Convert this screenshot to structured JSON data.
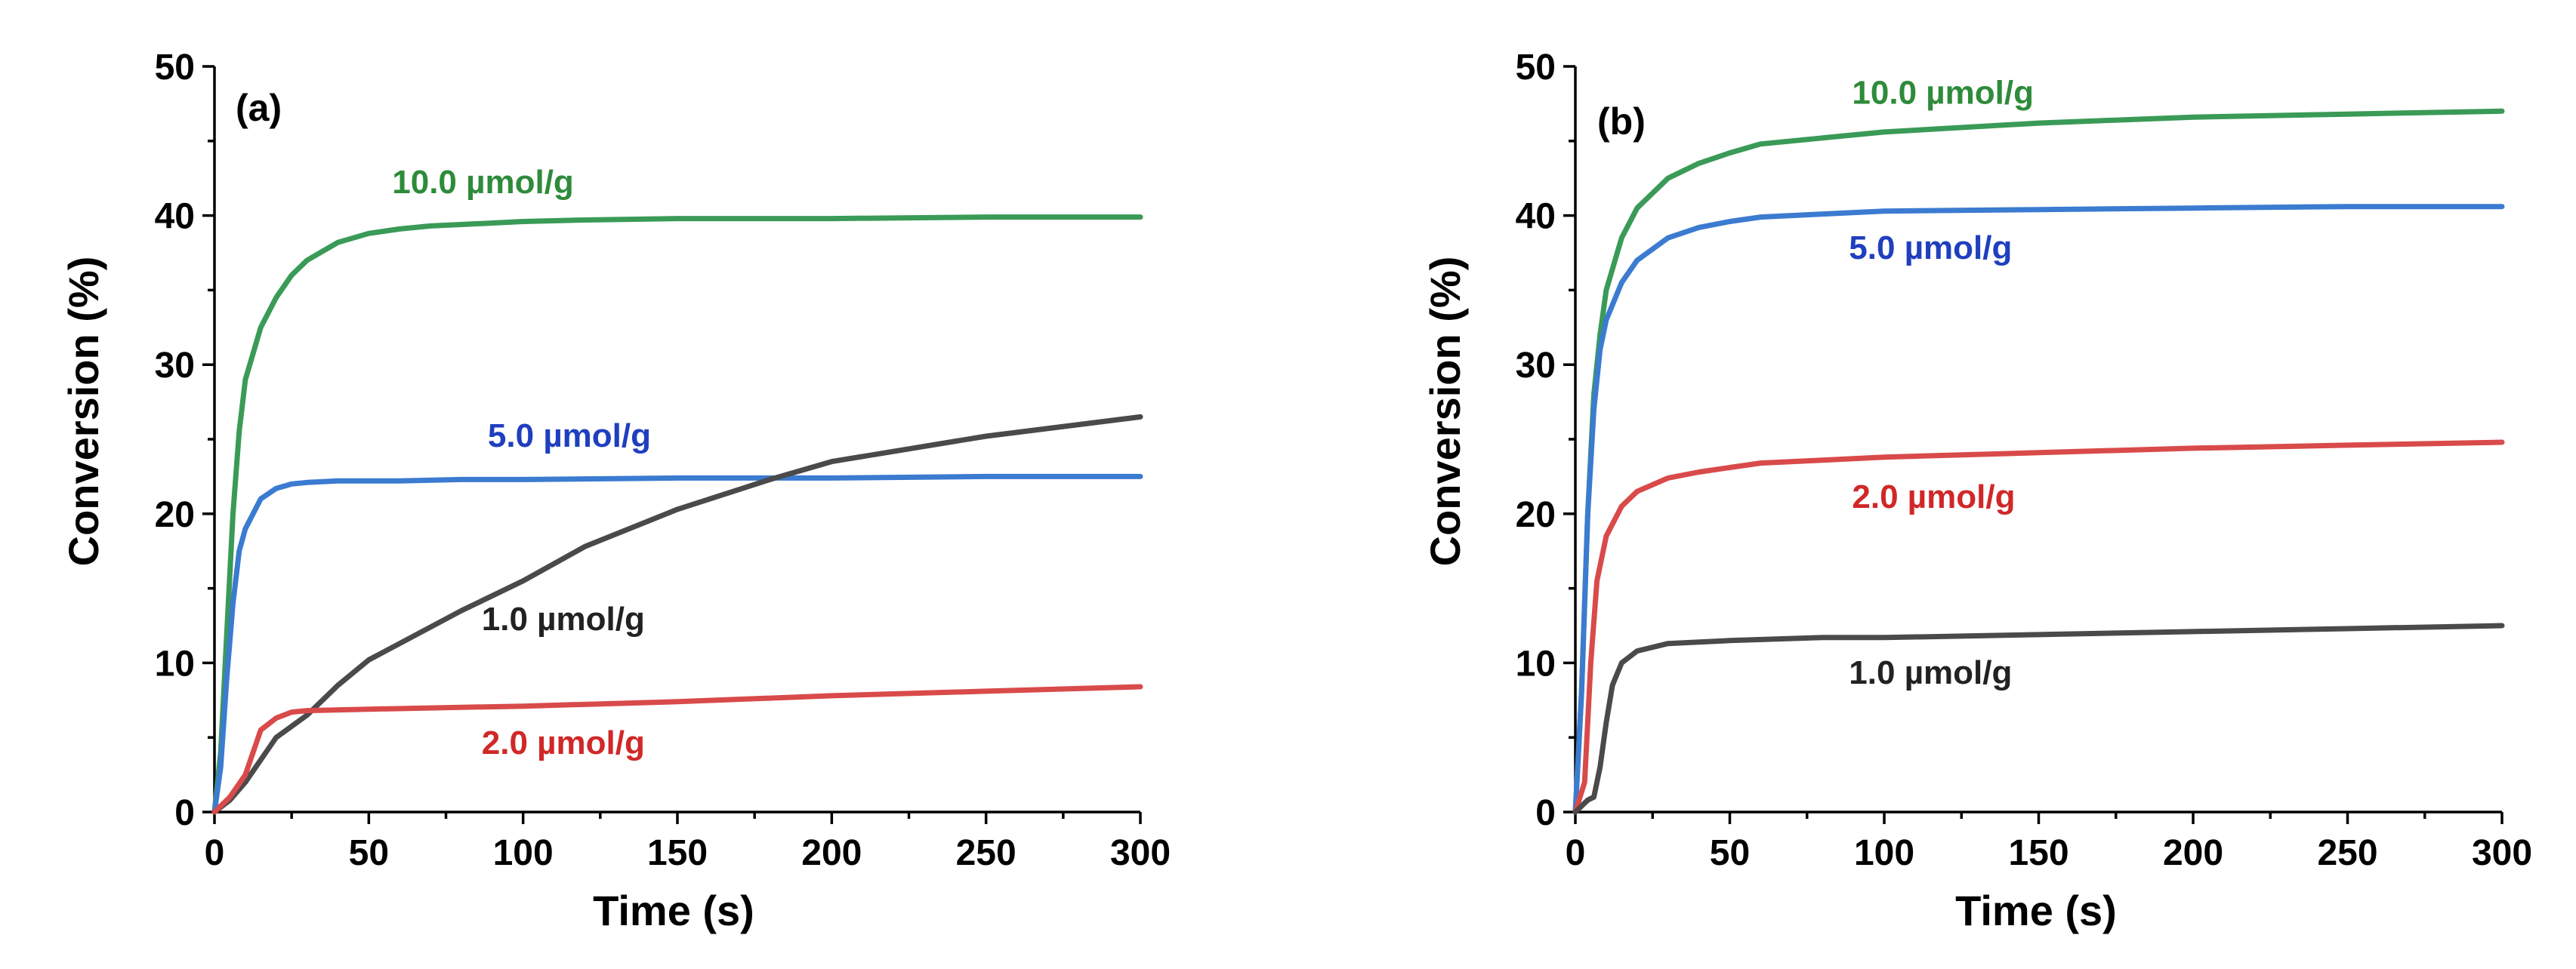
{
  "chart_data": [
    {
      "type": "line",
      "panel_label": "(a)",
      "xlabel": "Time (s)",
      "ylabel": "Conversion (%)",
      "xlim": [
        0,
        300
      ],
      "ylim": [
        0,
        50
      ],
      "xticks": [
        0,
        50,
        100,
        150,
        200,
        250,
        300
      ],
      "yticks": [
        0,
        10,
        20,
        30,
        40,
        50
      ],
      "grid": false,
      "series": [
        {
          "name": "10.0 µmol/g",
          "color": "#3a9a57",
          "label_color": "#2e8b3a",
          "label_at": [
            87,
            41.5
          ],
          "x": [
            0,
            2,
            4,
            6,
            8,
            10,
            15,
            20,
            25,
            30,
            40,
            50,
            60,
            70,
            80,
            100,
            120,
            150,
            200,
            250,
            300
          ],
          "y": [
            0,
            4,
            12,
            20,
            25.5,
            29,
            32.5,
            34.5,
            36,
            37,
            38.2,
            38.8,
            39.1,
            39.3,
            39.4,
            39.6,
            39.7,
            39.8,
            39.8,
            39.9,
            39.9
          ]
        },
        {
          "name": "5.0 µmol/g",
          "color": "#3b7bd0",
          "label_color": "#1f3fbf",
          "label_at": [
            115,
            24.5
          ],
          "x": [
            0,
            2,
            4,
            6,
            8,
            10,
            15,
            20,
            25,
            30,
            40,
            60,
            80,
            100,
            150,
            200,
            250,
            300
          ],
          "y": [
            0,
            3,
            9,
            14,
            17.5,
            19,
            21,
            21.7,
            22,
            22.1,
            22.2,
            22.2,
            22.3,
            22.3,
            22.4,
            22.4,
            22.5,
            22.5
          ]
        },
        {
          "name": "1.0 µmol/g",
          "color": "#4a4a4a",
          "label_color": "#222222",
          "label_at": [
            113,
            12.2
          ],
          "x": [
            0,
            5,
            10,
            15,
            20,
            30,
            40,
            50,
            60,
            80,
            100,
            120,
            150,
            180,
            200,
            250,
            300
          ],
          "y": [
            0,
            0.8,
            2,
            3.5,
            5,
            6.5,
            8.5,
            10.2,
            11.3,
            13.5,
            15.5,
            17.8,
            20.3,
            22.3,
            23.5,
            25.2,
            26.5
          ]
        },
        {
          "name": "2.0 µmol/g",
          "color": "#d94a4a",
          "label_color": "#d02828",
          "label_at": [
            113,
            3.9
          ],
          "x": [
            0,
            5,
            10,
            15,
            20,
            25,
            30,
            50,
            100,
            150,
            200,
            250,
            300
          ],
          "y": [
            0,
            1,
            2.5,
            5.5,
            6.3,
            6.7,
            6.8,
            6.9,
            7.1,
            7.4,
            7.8,
            8.1,
            8.4
          ]
        }
      ]
    },
    {
      "type": "line",
      "panel_label": "(b)",
      "xlabel": "Time (s)",
      "ylabel": "Conversion (%)",
      "xlim": [
        0,
        300
      ],
      "ylim": [
        0,
        50
      ],
      "xticks": [
        0,
        50,
        100,
        150,
        200,
        250,
        300
      ],
      "yticks": [
        0,
        10,
        20,
        30,
        40,
        50
      ],
      "grid": false,
      "series": [
        {
          "name": "10.0 µmol/g",
          "color": "#3a9a57",
          "label_color": "#2e8b3a",
          "label_at": [
            119,
            47.5
          ],
          "x": [
            0,
            2,
            4,
            6,
            8,
            10,
            15,
            20,
            30,
            40,
            50,
            60,
            80,
            100,
            150,
            200,
            250,
            300
          ],
          "y": [
            0,
            8,
            20,
            28,
            32,
            35,
            38.5,
            40.5,
            42.5,
            43.5,
            44.2,
            44.8,
            45.2,
            45.6,
            46.2,
            46.6,
            46.8,
            47
          ]
        },
        {
          "name": "5.0 µmol/g",
          "color": "#3b7bd0",
          "label_color": "#1f3fbf",
          "label_at": [
            115,
            37.1
          ],
          "x": [
            0,
            2,
            4,
            6,
            8,
            10,
            15,
            20,
            30,
            40,
            50,
            60,
            80,
            100,
            150,
            200,
            250,
            300
          ],
          "y": [
            0,
            8,
            20,
            27,
            31,
            33,
            35.5,
            37,
            38.5,
            39.2,
            39.6,
            39.9,
            40.1,
            40.3,
            40.4,
            40.5,
            40.6,
            40.6
          ]
        },
        {
          "name": "2.0 µmol/g",
          "color": "#d94a4a",
          "label_color": "#d02828",
          "label_at": [
            116,
            20.4
          ],
          "x": [
            0,
            3,
            5,
            7,
            10,
            15,
            20,
            30,
            40,
            50,
            60,
            80,
            100,
            150,
            200,
            250,
            300
          ],
          "y": [
            0,
            2,
            10,
            15.5,
            18.5,
            20.5,
            21.5,
            22.4,
            22.8,
            23.1,
            23.4,
            23.6,
            23.8,
            24.1,
            24.4,
            24.6,
            24.8
          ]
        },
        {
          "name": "1.0 µmol/g",
          "color": "#4a4a4a",
          "label_color": "#222222",
          "label_at": [
            115,
            8.6
          ],
          "x": [
            0,
            4,
            6,
            8,
            10,
            12,
            15,
            20,
            30,
            50,
            80,
            100,
            150,
            200,
            250,
            300
          ],
          "y": [
            0,
            0.8,
            1,
            3,
            6,
            8.5,
            10,
            10.8,
            11.3,
            11.5,
            11.7,
            11.7,
            11.9,
            12.1,
            12.3,
            12.5
          ]
        }
      ]
    }
  ]
}
